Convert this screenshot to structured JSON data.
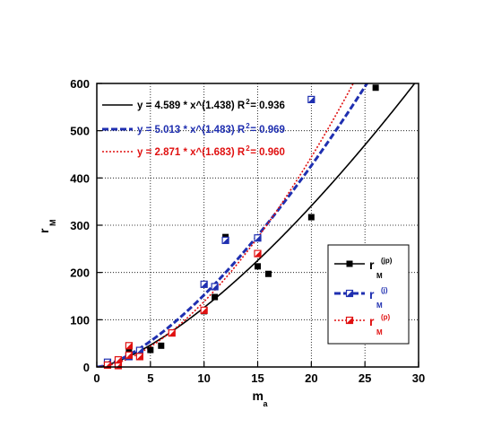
{
  "chart_data": {
    "type": "scatter",
    "title": "",
    "xlabel": {
      "main": "m",
      "sub": "a"
    },
    "ylabel": {
      "main": "r",
      "sub": "M"
    },
    "xlim": [
      0,
      30
    ],
    "ylim": [
      0,
      600
    ],
    "x_ticks": [
      "0",
      "5",
      "10",
      "15",
      "20",
      "25",
      "30"
    ],
    "y_ticks": [
      "0",
      "100",
      "200",
      "300",
      "400",
      "500",
      "600"
    ],
    "x_tick_values": [
      0,
      5,
      10,
      15,
      20,
      25,
      30
    ],
    "y_tick_values": [
      0,
      100,
      200,
      300,
      400,
      500,
      600
    ],
    "grid": "dotted",
    "annotations": [
      {
        "text": "y = 4.589 * x^(1.438)   R",
        "sup": "2",
        "tail": " = 0.936",
        "color": "#000000"
      },
      {
        "text": "y = 5.013 * x^(1.483)   R",
        "sup": "2",
        "tail": " = 0.969",
        "color": "#1f2fb0"
      },
      {
        "text": "y = 2.871 * x^(1.683)   R",
        "sup": "2",
        "tail": " = 0.960",
        "color": "#e01010"
      }
    ],
    "legend_position": "lower-right",
    "series": [
      {
        "name": {
          "main": "r",
          "sub": "M",
          "sup": "(jp)"
        },
        "color": "#000000",
        "marker": "filled-square",
        "line": "solid",
        "fit": {
          "a": 4.589,
          "b": 1.438
        },
        "points": [
          [
            1,
            5
          ],
          [
            2,
            12
          ],
          [
            3,
            38
          ],
          [
            4,
            30
          ],
          [
            5,
            36
          ],
          [
            6,
            45
          ],
          [
            10,
            118
          ],
          [
            11,
            148
          ],
          [
            12,
            275
          ],
          [
            15,
            213
          ],
          [
            16,
            197
          ],
          [
            20,
            317
          ],
          [
            26,
            591
          ]
        ]
      },
      {
        "name": {
          "main": "r",
          "sub": "M",
          "sup": "(j)"
        },
        "color": "#1f2fb0",
        "marker": "half-square",
        "line": "dashed",
        "fit": {
          "a": 5.013,
          "b": 1.483
        },
        "points": [
          [
            1,
            10
          ],
          [
            2,
            8
          ],
          [
            3,
            22
          ],
          [
            4,
            35
          ],
          [
            10,
            175
          ],
          [
            11,
            170
          ],
          [
            12,
            268
          ],
          [
            15,
            273
          ],
          [
            20,
            566
          ]
        ]
      },
      {
        "name": {
          "main": "r",
          "sub": "M",
          "sup": "(p)"
        },
        "color": "#e01010",
        "marker": "half-square",
        "line": "dotted",
        "fit": {
          "a": 2.871,
          "b": 1.683
        },
        "points": [
          [
            1,
            4
          ],
          [
            2,
            3
          ],
          [
            2,
            15
          ],
          [
            3,
            25
          ],
          [
            3,
            45
          ],
          [
            4,
            22
          ],
          [
            7,
            72
          ],
          [
            10,
            120
          ],
          [
            15,
            240
          ]
        ]
      }
    ]
  }
}
